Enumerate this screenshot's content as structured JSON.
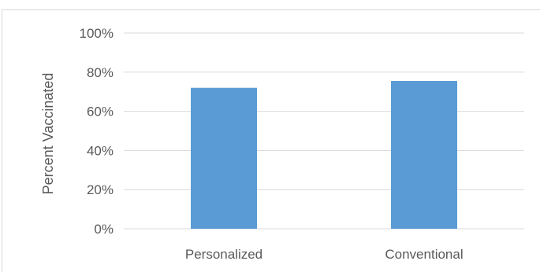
{
  "chart_data": {
    "type": "bar",
    "title": "",
    "xlabel": "",
    "ylabel": "Percent Vaccinated",
    "categories": [
      "Personalized",
      "Conventional"
    ],
    "values": [
      0.72,
      0.755
    ],
    "ylim": [
      0,
      1
    ],
    "yticks": [
      0,
      0.2,
      0.4,
      0.6,
      0.8,
      1.0
    ],
    "ytick_labels": [
      "0%",
      "20%",
      "40%",
      "60%",
      "80%",
      "100%"
    ],
    "grid": true,
    "legend": "none",
    "colors": {
      "bar": "#5b9bd5",
      "grid": "#d9d9d9",
      "text": "#595959"
    }
  }
}
